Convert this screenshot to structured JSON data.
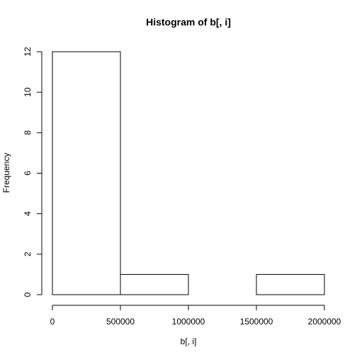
{
  "chart_data": {
    "type": "bar",
    "title": "Histogram of b[, i]",
    "xlabel": "b[, i]",
    "ylabel": "Frequency",
    "bins": [
      {
        "from": 0,
        "to": 500000,
        "count": 12
      },
      {
        "from": 500000,
        "to": 1000000,
        "count": 1
      },
      {
        "from": 1000000,
        "to": 1500000,
        "count": 0
      },
      {
        "from": 1500000,
        "to": 2000000,
        "count": 1
      }
    ],
    "xlim": [
      0,
      2000000
    ],
    "ylim": [
      0,
      12
    ],
    "xticks": [
      0,
      500000,
      1000000,
      1500000,
      2000000
    ],
    "xtick_labels": [
      "0",
      "500000",
      "1000000",
      "1500000",
      "2000000"
    ],
    "yticks": [
      0,
      2,
      4,
      6,
      8,
      10,
      12
    ],
    "ytick_labels": [
      "0",
      "2",
      "4",
      "6",
      "8",
      "10",
      "12"
    ],
    "grid": false,
    "bar_fill": "#ffffff",
    "bar_stroke": "#000000"
  }
}
